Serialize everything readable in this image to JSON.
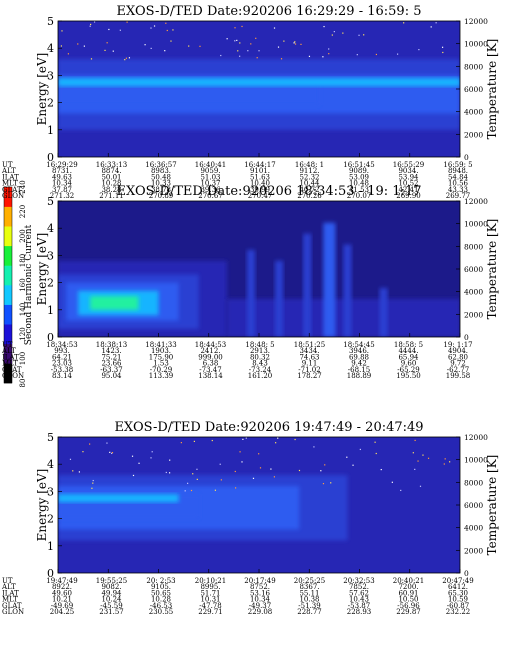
{
  "colorbar": {
    "label": "Second Harmonic Current",
    "ticks": [
      80,
      100,
      120,
      140,
      160,
      180,
      200,
      220,
      240
    ],
    "colors": [
      "#000000",
      "#3a0a70",
      "#1b10d8",
      "#1050ff",
      "#12c8ff",
      "#14f0b0",
      "#19f03a",
      "#e8ff10",
      "#ffb000",
      "#ff1400"
    ]
  },
  "chart_data": [
    {
      "type": "heatmap",
      "title": "EXOS-D/TED   Date:920206  16:29:29 - 16:59: 5",
      "ylabel": "Energy [eV]",
      "y2label": "Temperature [K]",
      "ylim": [
        0,
        5
      ],
      "yticks": [
        "0",
        "1",
        "2",
        "3",
        "4",
        "5"
      ],
      "y2lim": [
        0,
        12000
      ],
      "y2ticks": [
        "0",
        "2000",
        "4000",
        "6000",
        "8000",
        "10000",
        "12000"
      ],
      "features": [
        {
          "x0": 0.0,
          "x1": 1.0,
          "y0": 0.0,
          "y1": 5.0,
          "level": 1
        },
        {
          "x0": 0.0,
          "x1": 1.0,
          "y0": 1.0,
          "y1": 3.6,
          "level": 2
        },
        {
          "x0": 0.0,
          "x1": 1.0,
          "y0": 1.6,
          "y1": 3.0,
          "level": 3
        },
        {
          "x0": 0.0,
          "x1": 0.65,
          "y0": 1.9,
          "y1": 2.7,
          "level": 3
        },
        {
          "x0": 0.0,
          "x1": 1.0,
          "y0": 2.6,
          "y1": 2.9,
          "level": 4
        }
      ],
      "speckle": [
        3.6,
        5.0
      ],
      "table": {
        "rows": [
          {
            "label": "UT",
            "values": [
              "16:29:29",
              "16:33:13",
              "16:36:57",
              "16:40:41",
              "16:44:17",
              "16:48: 1",
              "16:51:45",
              "16:55:29",
              "16:59: 5"
            ]
          },
          {
            "label": "ALT",
            "values": [
              "8731.",
              "8874.",
              "8983.",
              "9059.",
              "9101.",
              "9112.",
              "9089.",
              "9034.",
              "8948."
            ]
          },
          {
            "label": "ILAT",
            "values": [
              "49.63",
              "50.01",
              "50.48",
              "51.03",
              "51.63",
              "52.32",
              "53.09",
              "53.94",
              "54.84"
            ]
          },
          {
            "label": "MLT",
            "values": [
              "10.34",
              "10.28",
              "10.33",
              "10.37",
              "10.40",
              "10.44",
              "10.48",
              "10.52",
              "10.56"
            ]
          },
          {
            "label": "GLAT",
            "values": [
              "37.87",
              "38.28",
              "38.78",
              "39.36",
              "39.99",
              "40.72",
              "41.53",
              "42.41",
              "43.33"
            ]
          },
          {
            "label": "GLON",
            "values": [
              "271.32",
              "271.11",
              "270.89",
              "270.67",
              "270.47",
              "270.26",
              "270.07",
              "269.90",
              "269.77"
            ]
          }
        ]
      }
    },
    {
      "type": "heatmap",
      "title": "EXOS-D/TED   Date:920206  18:34:53 - 19: 1:17",
      "ylabel": "Energy [eV]",
      "y2label": "Temperature [K]",
      "ylim": [
        0,
        5
      ],
      "yticks": [
        "0",
        "1",
        "2",
        "3",
        "4",
        "5"
      ],
      "y2lim": [
        0,
        12000
      ],
      "y2ticks": [
        "0",
        "2000",
        "4000",
        "6000",
        "8000",
        "10000",
        "12000"
      ],
      "features": [
        {
          "x0": 0.0,
          "x1": 1.0,
          "y0": 0.0,
          "y1": 5.0,
          "level": 0
        },
        {
          "x0": 0.0,
          "x1": 0.42,
          "y0": 0.0,
          "y1": 2.8,
          "level": 1
        },
        {
          "x0": 0.0,
          "x1": 0.35,
          "y0": 0.3,
          "y1": 2.3,
          "level": 2
        },
        {
          "x0": 0.02,
          "x1": 0.3,
          "y0": 0.6,
          "y1": 2.0,
          "level": 3
        },
        {
          "x0": 0.05,
          "x1": 0.25,
          "y0": 0.8,
          "y1": 1.7,
          "level": 4
        },
        {
          "x0": 0.08,
          "x1": 0.2,
          "y0": 1.0,
          "y1": 1.5,
          "level": 5
        },
        {
          "x0": 0.42,
          "x1": 1.0,
          "y0": 0.0,
          "y1": 1.4,
          "level": 1
        },
        {
          "x0": 0.47,
          "x1": 0.49,
          "y0": 0.0,
          "y1": 3.2,
          "level": 2
        },
        {
          "x0": 0.54,
          "x1": 0.56,
          "y0": 0.0,
          "y1": 2.8,
          "level": 2
        },
        {
          "x0": 0.61,
          "x1": 0.63,
          "y0": 0.0,
          "y1": 3.8,
          "level": 2
        },
        {
          "x0": 0.66,
          "x1": 0.69,
          "y0": 0.0,
          "y1": 4.2,
          "level": 3
        },
        {
          "x0": 0.71,
          "x1": 0.73,
          "y0": 0.0,
          "y1": 3.4,
          "level": 2
        },
        {
          "x0": 0.8,
          "x1": 0.82,
          "y0": 0.0,
          "y1": 1.8,
          "level": 2
        }
      ],
      "speckle": [],
      "table": {
        "rows": [
          {
            "label": "UT",
            "values": [
              "18:34:53",
              "18:38:13",
              "18:41:33",
              "18:44:53",
              "18:48: 5",
              "18:51:25",
              "18:54:45",
              "18:58: 5",
              "19: 1:17"
            ]
          },
          {
            "label": "ALT",
            "values": [
              "993.",
              "1423.",
              "1903.",
              "2412.",
              "2913.",
              "3434.",
              "3946.",
              "4444.",
              "4904."
            ]
          },
          {
            "label": "ILAT",
            "values": [
              "64.21",
              "75.21",
              "175.90",
              "999.00",
              "80.32",
              "74.63",
              "69.88",
              "65.94",
              "62.80"
            ]
          },
          {
            "label": "MLT",
            "values": [
              "23.03",
              "23.66",
              "1.53",
              "6.38",
              "8.43",
              "9.11",
              "9.42",
              "9.60",
              "9.72"
            ]
          },
          {
            "label": "GLAT",
            "values": [
              "-53.38",
              "-63.37",
              "-70.29",
              "-73.47",
              "-73.24",
              "-71.02",
              "-68.15",
              "-65.29",
              "-62.77"
            ]
          },
          {
            "label": "GLON",
            "values": [
              "83.14",
              "95.04",
              "113.39",
              "138.14",
              "161.20",
              "178.27",
              "188.89",
              "195.50",
              "199.58"
            ]
          }
        ]
      }
    },
    {
      "type": "heatmap",
      "title": "EXOS-D/TED   Date:920206  19:47:49 - 20:47:49",
      "ylabel": "Energy [eV]",
      "y2label": "Temperature [K]",
      "ylim": [
        0,
        5
      ],
      "yticks": [
        "0",
        "1",
        "2",
        "3",
        "4",
        "5"
      ],
      "y2lim": [
        0,
        12000
      ],
      "y2ticks": [
        "0",
        "2000",
        "4000",
        "6000",
        "8000",
        "10000",
        "12000"
      ],
      "features": [
        {
          "x0": 0.0,
          "x1": 1.0,
          "y0": 0.0,
          "y1": 5.0,
          "level": 1
        },
        {
          "x0": 0.0,
          "x1": 0.72,
          "y0": 1.2,
          "y1": 3.6,
          "level": 2
        },
        {
          "x0": 0.0,
          "x1": 0.6,
          "y0": 1.6,
          "y1": 3.2,
          "level": 3
        },
        {
          "x0": 0.0,
          "x1": 0.35,
          "y0": 2.0,
          "y1": 2.9,
          "level": 3
        },
        {
          "x0": 0.0,
          "x1": 0.3,
          "y0": 2.6,
          "y1": 2.9,
          "level": 4
        }
      ],
      "speckle": [
        3.0,
        5.0
      ],
      "table": {
        "rows": [
          {
            "label": "UT",
            "values": [
              "19:47:49",
              "19:55:25",
              "20: 2:53",
              "20:10:21",
              "20:17:49",
              "20:25:25",
              "20:32:53",
              "20:40:21",
              "20:47:49"
            ]
          },
          {
            "label": "ALT",
            "values": [
              "8922.",
              "9082.",
              "9105.",
              "8995.",
              "8752.",
              "8367.",
              "7852.",
              "7200.",
              "6412."
            ]
          },
          {
            "label": "ILAT",
            "values": [
              "49.60",
              "49.94",
              "50.65",
              "51.71",
              "53.16",
              "55.11",
              "57.62",
              "60.91",
              "65.30"
            ]
          },
          {
            "label": "MLT",
            "values": [
              "10.21",
              "10.24",
              "10.28",
              "10.31",
              "10.34",
              "10.38",
              "10.43",
              "10.50",
              "10.59"
            ]
          },
          {
            "label": "GLAT",
            "values": [
              "-49.69",
              "-45.59",
              "-46.53",
              "-47.78",
              "-49.37",
              "-51.39",
              "-53.87",
              "-56.96",
              "-60.87"
            ]
          },
          {
            "label": "GLON",
            "values": [
              "204.25",
              "231.57",
              "230.55",
              "229.71",
              "229.08",
              "228.77",
              "228.93",
              "229.87",
              "232.22"
            ]
          }
        ]
      }
    }
  ]
}
